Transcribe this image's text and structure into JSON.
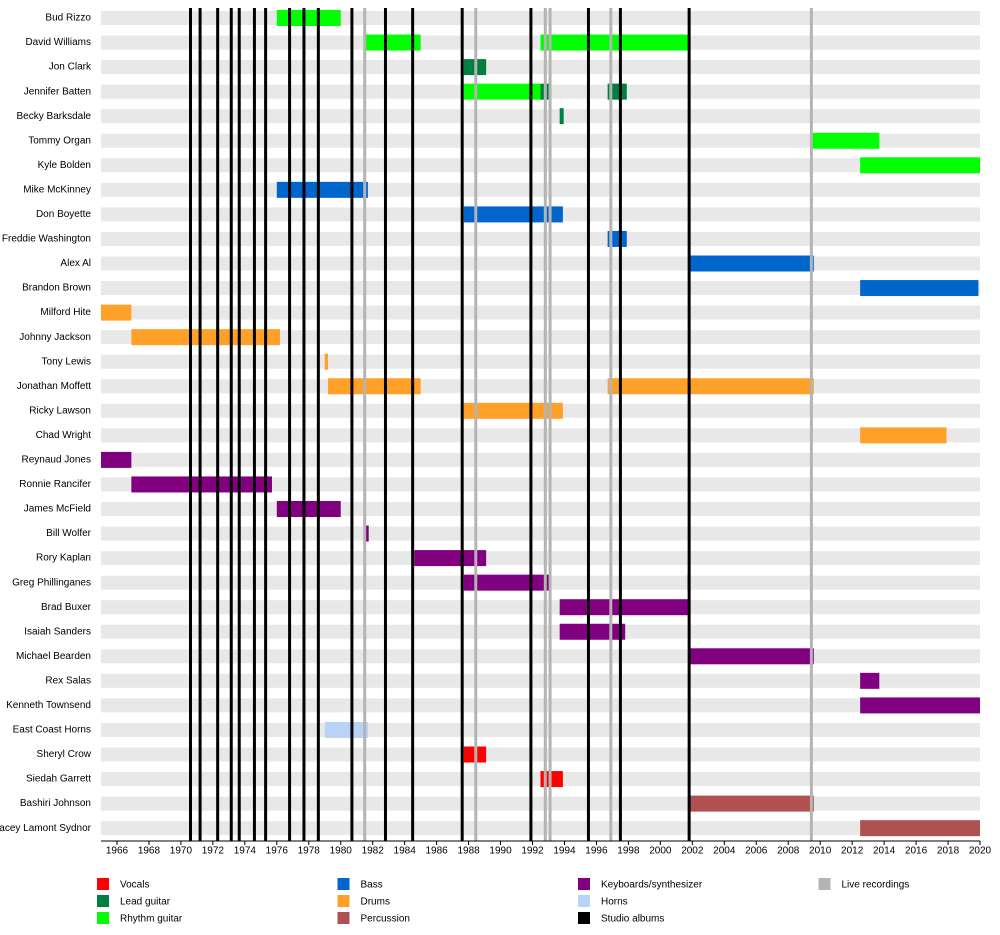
{
  "chart_data": {
    "type": "timeline",
    "xlim": [
      1965,
      2020
    ],
    "xticks": [
      1966,
      1968,
      1970,
      1972,
      1974,
      1976,
      1978,
      1980,
      1982,
      1984,
      1986,
      1988,
      1990,
      1992,
      1994,
      1996,
      1998,
      2000,
      2002,
      2004,
      2006,
      2008,
      2010,
      2012,
      2014,
      2016,
      2018,
      2020
    ],
    "roles": [
      {
        "name": "Vocals",
        "color": "#ff0000"
      },
      {
        "name": "Lead guitar",
        "color": "#008040"
      },
      {
        "name": "Rhythm guitar",
        "color": "#00ff00"
      },
      {
        "name": "Bass",
        "color": "#0066cc"
      },
      {
        "name": "Drums",
        "color": "#ffa028"
      },
      {
        "name": "Percussion",
        "color": "#b05050"
      },
      {
        "name": "Keyboards/synthesizer",
        "color": "#800080"
      },
      {
        "name": "Horns",
        "color": "#b8d2f8"
      }
    ],
    "events": [
      {
        "name": "Studio albums",
        "color": "#000000",
        "years": [
          1970.6,
          1971.2,
          1972.3,
          1973.15,
          1973.65,
          1974.6,
          1975.3,
          1976.8,
          1977.7,
          1978.6,
          1980.7,
          1982.8,
          1984.5,
          1987.6,
          1991.9,
          1995.5,
          1997.5,
          2001.8
        ]
      },
      {
        "name": "Live recordings",
        "color": "#b4b4b4",
        "years": [
          1981.5,
          1988.45,
          1992.8,
          1993.1,
          1996.9,
          2009.45
        ]
      }
    ],
    "members": [
      {
        "name": "Bud Rizzo",
        "periods": [
          {
            "role": "Rhythm guitar",
            "start": 1976,
            "end": 1980
          }
        ]
      },
      {
        "name": "David Williams",
        "periods": [
          {
            "role": "Rhythm guitar",
            "start": 1981.5,
            "end": 1985
          },
          {
            "role": "Rhythm guitar",
            "start": 1992.5,
            "end": 2001.8
          }
        ]
      },
      {
        "name": "Jon Clark",
        "periods": [
          {
            "role": "Lead guitar",
            "start": 1987.7,
            "end": 1989.1
          }
        ]
      },
      {
        "name": "Jennifer Batten",
        "periods": [
          {
            "role": "Rhythm guitar",
            "start": 1987.7,
            "end": 1992.5
          },
          {
            "role": "Lead guitar",
            "start": 1992.5,
            "end": 1993.1
          },
          {
            "role": "Lead guitar",
            "start": 1996.7,
            "end": 1997.9
          }
        ]
      },
      {
        "name": "Becky Barksdale",
        "periods": [
          {
            "role": "Lead guitar",
            "start": 1993.7,
            "end": 1993.95
          }
        ]
      },
      {
        "name": "Tommy Organ",
        "periods": [
          {
            "role": "Rhythm guitar",
            "start": 2009.5,
            "end": 2013.7
          }
        ]
      },
      {
        "name": "Kyle  Bolden",
        "periods": [
          {
            "role": "Rhythm guitar",
            "start": 2012.5,
            "end": 2020
          }
        ]
      },
      {
        "name": "Mike McKinney",
        "periods": [
          {
            "role": "Bass",
            "start": 1976,
            "end": 1981.7
          }
        ]
      },
      {
        "name": "Don Boyette",
        "periods": [
          {
            "role": "Bass",
            "start": 1987.7,
            "end": 1993.9
          }
        ]
      },
      {
        "name": "Freddie Washington",
        "periods": [
          {
            "role": "Bass",
            "start": 1996.7,
            "end": 1997.9
          }
        ]
      },
      {
        "name": "Alex Al",
        "periods": [
          {
            "role": "Bass",
            "start": 2001.8,
            "end": 2009.6
          }
        ]
      },
      {
        "name": "Brandon Brown",
        "periods": [
          {
            "role": "Bass",
            "start": 2012.5,
            "end": 2019.9
          }
        ]
      },
      {
        "name": "Milford Hite",
        "periods": [
          {
            "role": "Drums",
            "start": 1965,
            "end": 1966.9
          }
        ]
      },
      {
        "name": "Johnny Jackson",
        "periods": [
          {
            "role": "Drums",
            "start": 1966.9,
            "end": 1976.2
          }
        ]
      },
      {
        "name": "Tony Lewis",
        "periods": [
          {
            "role": "Drums",
            "start": 1979,
            "end": 1979.2
          }
        ]
      },
      {
        "name": "Jonathan Moffett",
        "periods": [
          {
            "role": "Drums",
            "start": 1979.2,
            "end": 1985
          },
          {
            "role": "Drums",
            "start": 1996.7,
            "end": 2009.6
          }
        ]
      },
      {
        "name": "Ricky Lawson",
        "periods": [
          {
            "role": "Drums",
            "start": 1987.7,
            "end": 1993.9
          }
        ]
      },
      {
        "name": "Chad Wright",
        "periods": [
          {
            "role": "Drums",
            "start": 2012.5,
            "end": 2017.9
          }
        ]
      },
      {
        "name": "Reynaud Jones",
        "periods": [
          {
            "role": "Keyboards/synthesizer",
            "start": 1965,
            "end": 1966.9
          }
        ]
      },
      {
        "name": "Ronnie Rancifer",
        "periods": [
          {
            "role": "Keyboards/synthesizer",
            "start": 1966.9,
            "end": 1975.7
          }
        ]
      },
      {
        "name": "James McField",
        "periods": [
          {
            "role": "Keyboards/synthesizer",
            "start": 1976,
            "end": 1980
          }
        ]
      },
      {
        "name": "Bill Wolfer",
        "periods": [
          {
            "role": "Keyboards/synthesizer",
            "start": 1981.5,
            "end": 1981.75
          }
        ]
      },
      {
        "name": "Rory Kaplan",
        "periods": [
          {
            "role": "Keyboards/synthesizer",
            "start": 1984.6,
            "end": 1989.1
          }
        ]
      },
      {
        "name": "Greg Phillinganes",
        "periods": [
          {
            "role": "Keyboards/synthesizer",
            "start": 1987.7,
            "end": 1993.1
          },
          {
            "role": "Keyboards/synthesizer",
            "start": 2001.7,
            "end": 2001.85
          }
        ]
      },
      {
        "name": "Brad Buxer",
        "periods": [
          {
            "role": "Keyboards/synthesizer",
            "start": 1993.7,
            "end": 2001.8
          }
        ]
      },
      {
        "name": "Isaiah Sanders",
        "periods": [
          {
            "role": "Keyboards/synthesizer",
            "start": 1993.7,
            "end": 1997.8
          }
        ]
      },
      {
        "name": "Michael Bearden",
        "periods": [
          {
            "role": "Keyboards/synthesizer",
            "start": 2001.8,
            "end": 2009.6
          }
        ]
      },
      {
        "name": "Rex Salas",
        "periods": [
          {
            "role": "Keyboards/synthesizer",
            "start": 2012.5,
            "end": 2013.7
          }
        ]
      },
      {
        "name": "Kenneth Townsend",
        "periods": [
          {
            "role": "Keyboards/synthesizer",
            "start": 2012.5,
            "end": 2020
          }
        ]
      },
      {
        "name": "East Coast Horns",
        "periods": [
          {
            "role": "Horns",
            "start": 1979,
            "end": 1981.7
          }
        ]
      },
      {
        "name": "Sheryl Crow",
        "periods": [
          {
            "role": "Vocals",
            "start": 1987.7,
            "end": 1989.1
          }
        ]
      },
      {
        "name": "Siedah Garrett",
        "periods": [
          {
            "role": "Vocals",
            "start": 1992.5,
            "end": 1993.9
          }
        ]
      },
      {
        "name": "Bashiri Johnson",
        "periods": [
          {
            "role": "Percussion",
            "start": 2001.8,
            "end": 2009.6
          }
        ]
      },
      {
        "name": "Stacey Lamont Sydnor",
        "periods": [
          {
            "role": "Percussion",
            "start": 2012.5,
            "end": 2020
          }
        ]
      }
    ]
  }
}
